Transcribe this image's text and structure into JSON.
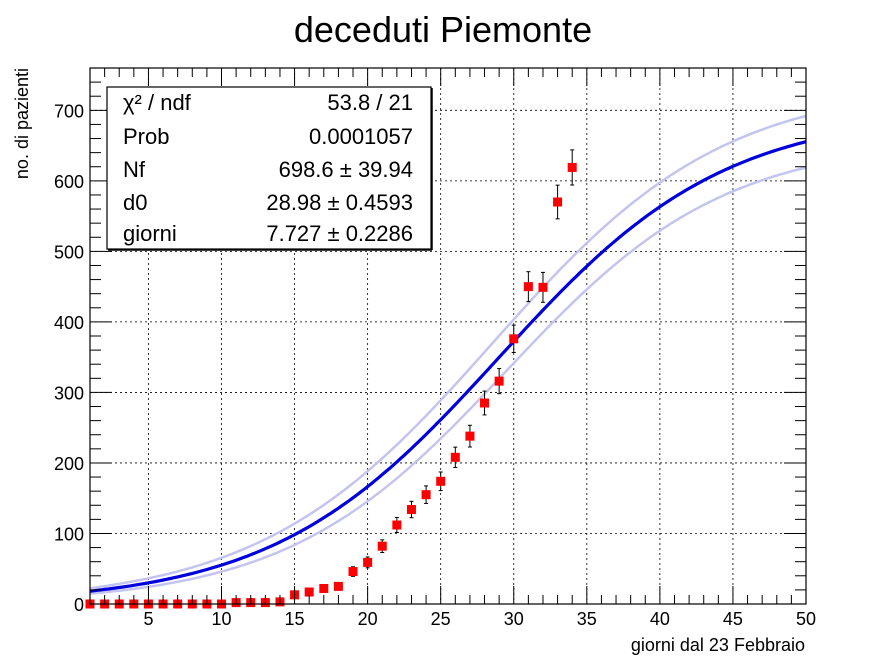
{
  "title": "deceduti Piemonte",
  "chart_data": {
    "type": "scatter",
    "title": "deceduti Piemonte",
    "xlabel": "giorni dal 23 Febbraio",
    "ylabel": "no. di pazienti",
    "xlim": [
      1,
      50
    ],
    "ylim": [
      0,
      760
    ],
    "grid": true,
    "x_ticks": [
      5,
      10,
      15,
      20,
      25,
      30,
      35,
      40,
      45,
      50
    ],
    "x_tick_labels": [
      "5",
      "10",
      "15",
      "20",
      "25",
      "30",
      "35",
      "40",
      "45",
      "50"
    ],
    "y_ticks": [
      0,
      100,
      200,
      300,
      400,
      500,
      600,
      700
    ],
    "y_tick_labels": [
      "0",
      "100",
      "200",
      "300",
      "400",
      "500",
      "600",
      "700"
    ],
    "series": [
      {
        "kind": "points",
        "color": "#ff0000",
        "x": [
          1,
          2,
          3,
          4,
          5,
          6,
          7,
          8,
          9,
          10,
          11,
          12,
          13,
          14,
          15,
          16,
          17,
          18,
          19,
          20,
          21,
          22,
          23,
          24,
          25,
          26,
          27,
          28,
          29,
          30,
          31,
          32,
          33,
          34
        ],
        "y": [
          0,
          0,
          0,
          0,
          0,
          0,
          0,
          0,
          0,
          0,
          2,
          2,
          2,
          3,
          13,
          17,
          22,
          25,
          46,
          59,
          82,
          112,
          134,
          155,
          174,
          208,
          238,
          285,
          316,
          376,
          450,
          449,
          570,
          619
        ],
        "yerr": [
          0,
          0,
          0,
          0,
          0,
          0,
          0,
          0,
          0,
          0,
          1.4,
          1.4,
          1.4,
          1.7,
          3.6,
          4.1,
          4.7,
          5,
          6.8,
          7.7,
          9,
          10.6,
          11.6,
          12.4,
          13.2,
          14.4,
          15.4,
          16.9,
          17.8,
          19.4,
          21.2,
          21.2,
          23.9,
          24.9
        ]
      },
      {
        "kind": "fit",
        "color": "#0000dd",
        "function": "logistic",
        "Nf": 698.6,
        "d0": 28.98,
        "giorni": 7.727
      },
      {
        "kind": "band-upper",
        "color": "#c4c4f0",
        "function": "logistic",
        "Nf": 738.5,
        "d0": 28.52,
        "giorni": 7.95
      },
      {
        "kind": "band-lower",
        "color": "#c4c4f0",
        "function": "logistic",
        "Nf": 658.7,
        "d0": 29.44,
        "giorni": 7.5
      }
    ]
  },
  "stats_box": {
    "rows": [
      {
        "label": "χ² / ndf",
        "value": "53.8 / 21"
      },
      {
        "label": "Prob",
        "value": "0.0001057"
      },
      {
        "label": "Nf",
        "value": "698.6 ± 39.94"
      },
      {
        "label": "d0",
        "value": "28.98 ± 0.4593"
      },
      {
        "label": "giorni",
        "value": "7.727 ± 0.2286"
      }
    ]
  }
}
